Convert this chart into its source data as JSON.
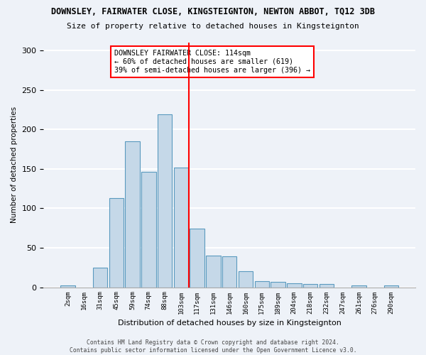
{
  "title": "DOWNSLEY, FAIRWATER CLOSE, KINGSTEIGNTON, NEWTON ABBOT, TQ12 3DB",
  "subtitle": "Size of property relative to detached houses in Kingsteignton",
  "xlabel": "Distribution of detached houses by size in Kingsteignton",
  "ylabel": "Number of detached properties",
  "categories": [
    "2sqm",
    "16sqm",
    "31sqm",
    "45sqm",
    "59sqm",
    "74sqm",
    "88sqm",
    "103sqm",
    "117sqm",
    "131sqm",
    "146sqm",
    "160sqm",
    "175sqm",
    "189sqm",
    "204sqm",
    "218sqm",
    "232sqm",
    "247sqm",
    "261sqm",
    "276sqm",
    "290sqm"
  ],
  "values": [
    2,
    0,
    25,
    113,
    185,
    146,
    219,
    152,
    74,
    40,
    39,
    20,
    8,
    7,
    5,
    4,
    4,
    0,
    2,
    0,
    2
  ],
  "bar_color": "#c5d8e8",
  "bar_edge_color": "#5a9abf",
  "vline_x": 8,
  "vline_color": "red",
  "annotation_text": "DOWNSLEY FAIRWATER CLOSE: 114sqm\n← 60% of detached houses are smaller (619)\n39% of semi-detached houses are larger (396) →",
  "annotation_box_color": "white",
  "annotation_box_edge_color": "red",
  "ylim": [
    0,
    310
  ],
  "yticks": [
    0,
    50,
    100,
    150,
    200,
    250,
    300
  ],
  "footer": "Contains HM Land Registry data © Crown copyright and database right 2024.\nContains public sector information licensed under the Open Government Licence v3.0.",
  "bg_color": "#eef2f8",
  "grid_color": "white"
}
